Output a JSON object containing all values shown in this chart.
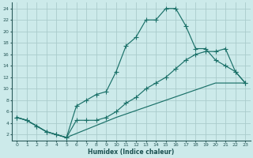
{
  "xlabel": "Humidex (Indice chaleur)",
  "bg_color": "#cceaea",
  "grid_color": "#aacccc",
  "line_color": "#1a7068",
  "xlim": [
    -0.5,
    23.5
  ],
  "ylim": [
    1,
    25
  ],
  "xticks": [
    0,
    1,
    2,
    3,
    4,
    5,
    6,
    7,
    8,
    9,
    10,
    11,
    12,
    13,
    14,
    15,
    16,
    17,
    18,
    19,
    20,
    21,
    22,
    23
  ],
  "yticks": [
    2,
    4,
    6,
    8,
    10,
    12,
    14,
    16,
    18,
    20,
    22,
    24
  ],
  "line1_x": [
    0,
    1,
    2,
    3,
    4,
    5,
    6,
    7,
    8,
    9,
    10,
    11,
    12,
    13,
    14,
    15,
    16,
    17,
    18,
    19,
    20,
    21,
    22,
    23
  ],
  "line1_y": [
    5,
    4.5,
    3.5,
    2.5,
    2,
    1.5,
    7,
    8,
    9,
    9.5,
    13,
    17.5,
    19,
    22,
    22,
    24,
    24,
    21,
    17,
    17,
    15,
    14,
    13,
    11
  ],
  "line2_x": [
    0,
    1,
    2,
    3,
    4,
    5,
    6,
    7,
    8,
    9,
    10,
    11,
    12,
    13,
    14,
    15,
    16,
    17,
    18,
    19,
    20,
    21,
    22,
    23
  ],
  "line2_y": [
    5,
    4.5,
    3.5,
    2.5,
    2,
    1.5,
    4.5,
    4.5,
    4.5,
    5,
    6,
    7.5,
    8.5,
    10,
    11,
    12,
    13.5,
    15,
    16,
    16.5,
    16.5,
    17,
    13,
    11
  ],
  "line3_x": [
    0,
    1,
    2,
    3,
    4,
    5,
    10,
    15,
    20,
    23
  ],
  "line3_y": [
    5,
    4.5,
    3.5,
    2.5,
    2,
    1.5,
    5,
    8,
    11,
    11
  ]
}
